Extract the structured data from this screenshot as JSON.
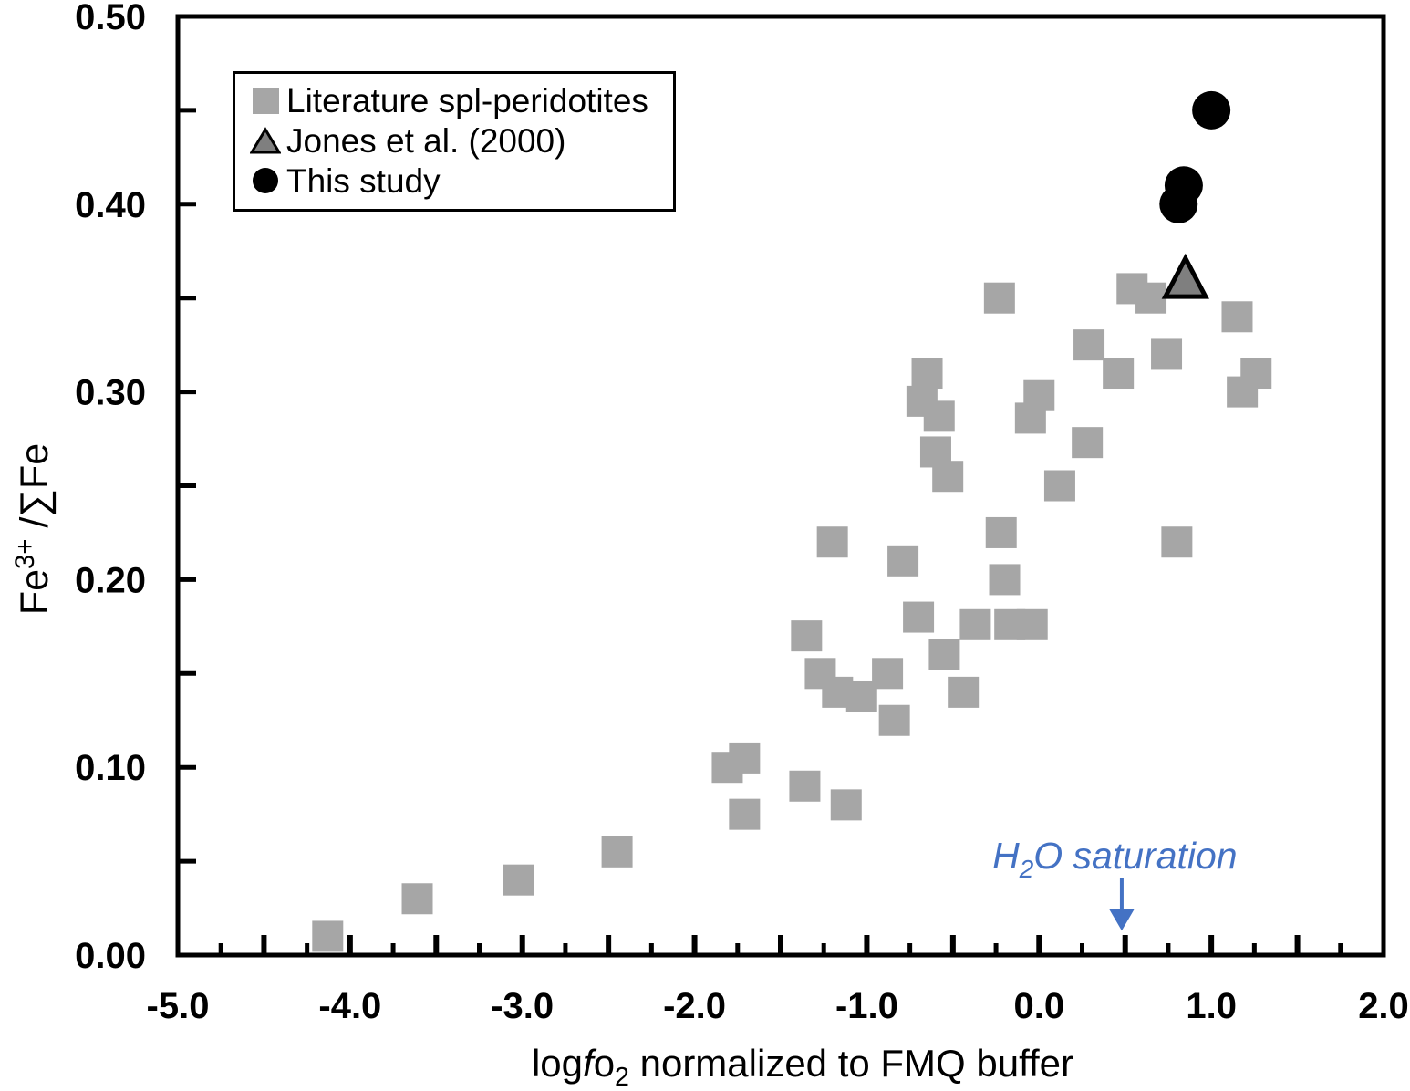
{
  "chart_data": {
    "type": "scatter",
    "title": "",
    "xlabel_plain": "logfo2 normalized to FMQ buffer",
    "xlabel_segments": [
      {
        "t": "log"
      },
      {
        "t": "f",
        "italic": true
      },
      {
        "t": "o"
      },
      {
        "t": "2",
        "sub": true
      },
      {
        "t": " normalized to FMQ buffer"
      }
    ],
    "ylabel_plain": "Fe3+ /∑Fe",
    "ylabel_segments": [
      {
        "t": "Fe"
      },
      {
        "t": "3+",
        "sup": true
      },
      {
        "t": " /∑Fe"
      }
    ],
    "xlim": [
      -5.0,
      2.0
    ],
    "ylim": [
      0.0,
      0.5
    ],
    "x_tick_labels": [
      {
        "v": -5.0,
        "label": "-5.0"
      },
      {
        "v": -4.0,
        "label": "-4.0"
      },
      {
        "v": -3.0,
        "label": "-3.0"
      },
      {
        "v": -2.0,
        "label": "-2.0"
      },
      {
        "v": -1.0,
        "label": "-1.0"
      },
      {
        "v": 0.0,
        "label": "0.0"
      },
      {
        "v": 1.0,
        "label": "1.0"
      },
      {
        "v": 2.0,
        "label": "2.0"
      }
    ],
    "y_tick_labels": [
      {
        "v": 0.0,
        "label": "0.00"
      },
      {
        "v": 0.1,
        "label": "0.10"
      },
      {
        "v": 0.2,
        "label": "0.20"
      },
      {
        "v": 0.3,
        "label": "0.30"
      },
      {
        "v": 0.4,
        "label": "0.40"
      },
      {
        "v": 0.5,
        "label": "0.50"
      }
    ],
    "x_minor_step": 0.25,
    "y_minor_step": 0.05,
    "grid": false,
    "legend_position": "top-left",
    "axis_color": "#000000",
    "series": [
      {
        "name": "Literature spl-peridotites",
        "marker": "square",
        "color": "#A6A6A6",
        "points": [
          [
            -4.13,
            0.01
          ],
          [
            -3.61,
            0.03
          ],
          [
            -3.02,
            0.04
          ],
          [
            -2.45,
            0.055
          ],
          [
            -1.81,
            0.1
          ],
          [
            -1.71,
            0.105
          ],
          [
            -1.71,
            0.075
          ],
          [
            -1.36,
            0.09
          ],
          [
            -1.35,
            0.17
          ],
          [
            -1.27,
            0.15
          ],
          [
            -1.2,
            0.22
          ],
          [
            -1.17,
            0.14
          ],
          [
            -1.12,
            0.08
          ],
          [
            -1.03,
            0.138
          ],
          [
            -0.88,
            0.15
          ],
          [
            -0.84,
            0.125
          ],
          [
            -0.79,
            0.21
          ],
          [
            -0.7,
            0.18
          ],
          [
            -0.68,
            0.295
          ],
          [
            -0.65,
            0.31
          ],
          [
            -0.6,
            0.268
          ],
          [
            -0.58,
            0.287
          ],
          [
            -0.55,
            0.16
          ],
          [
            -0.53,
            0.255
          ],
          [
            -0.44,
            0.14
          ],
          [
            -0.37,
            0.176
          ],
          [
            -0.23,
            0.35
          ],
          [
            -0.22,
            0.225
          ],
          [
            -0.2,
            0.2
          ],
          [
            -0.17,
            0.176
          ],
          [
            -0.05,
            0.286
          ],
          [
            -0.04,
            0.176
          ],
          [
            0.0,
            0.298
          ],
          [
            0.12,
            0.25
          ],
          [
            0.28,
            0.273
          ],
          [
            0.29,
            0.325
          ],
          [
            0.46,
            0.31
          ],
          [
            0.54,
            0.355
          ],
          [
            0.65,
            0.35
          ],
          [
            0.74,
            0.32
          ],
          [
            0.8,
            0.22
          ],
          [
            1.15,
            0.34
          ],
          [
            1.18,
            0.3
          ],
          [
            1.26,
            0.31
          ]
        ]
      },
      {
        "name": "Jones et al. (2000)",
        "marker": "triangle",
        "color": "#7F7F7F",
        "edge": "#000000",
        "points": [
          [
            0.85,
            0.36
          ]
        ]
      },
      {
        "name": "This study",
        "marker": "circle",
        "color": "#000000",
        "points": [
          [
            1.0,
            0.45
          ],
          [
            0.84,
            0.41
          ],
          [
            0.81,
            0.4
          ]
        ]
      }
    ],
    "annotation": {
      "plain": "H2O saturation",
      "text_segments": [
        {
          "t": "H"
        },
        {
          "t": "2",
          "sub": true
        },
        {
          "t": "O saturation"
        }
      ],
      "color": "#4472C4",
      "italic": true,
      "text_x": 0.44,
      "text_y": 0.053,
      "arrow": {
        "x": 0.48,
        "y_from": 0.041,
        "y_to": 0.013
      }
    }
  }
}
